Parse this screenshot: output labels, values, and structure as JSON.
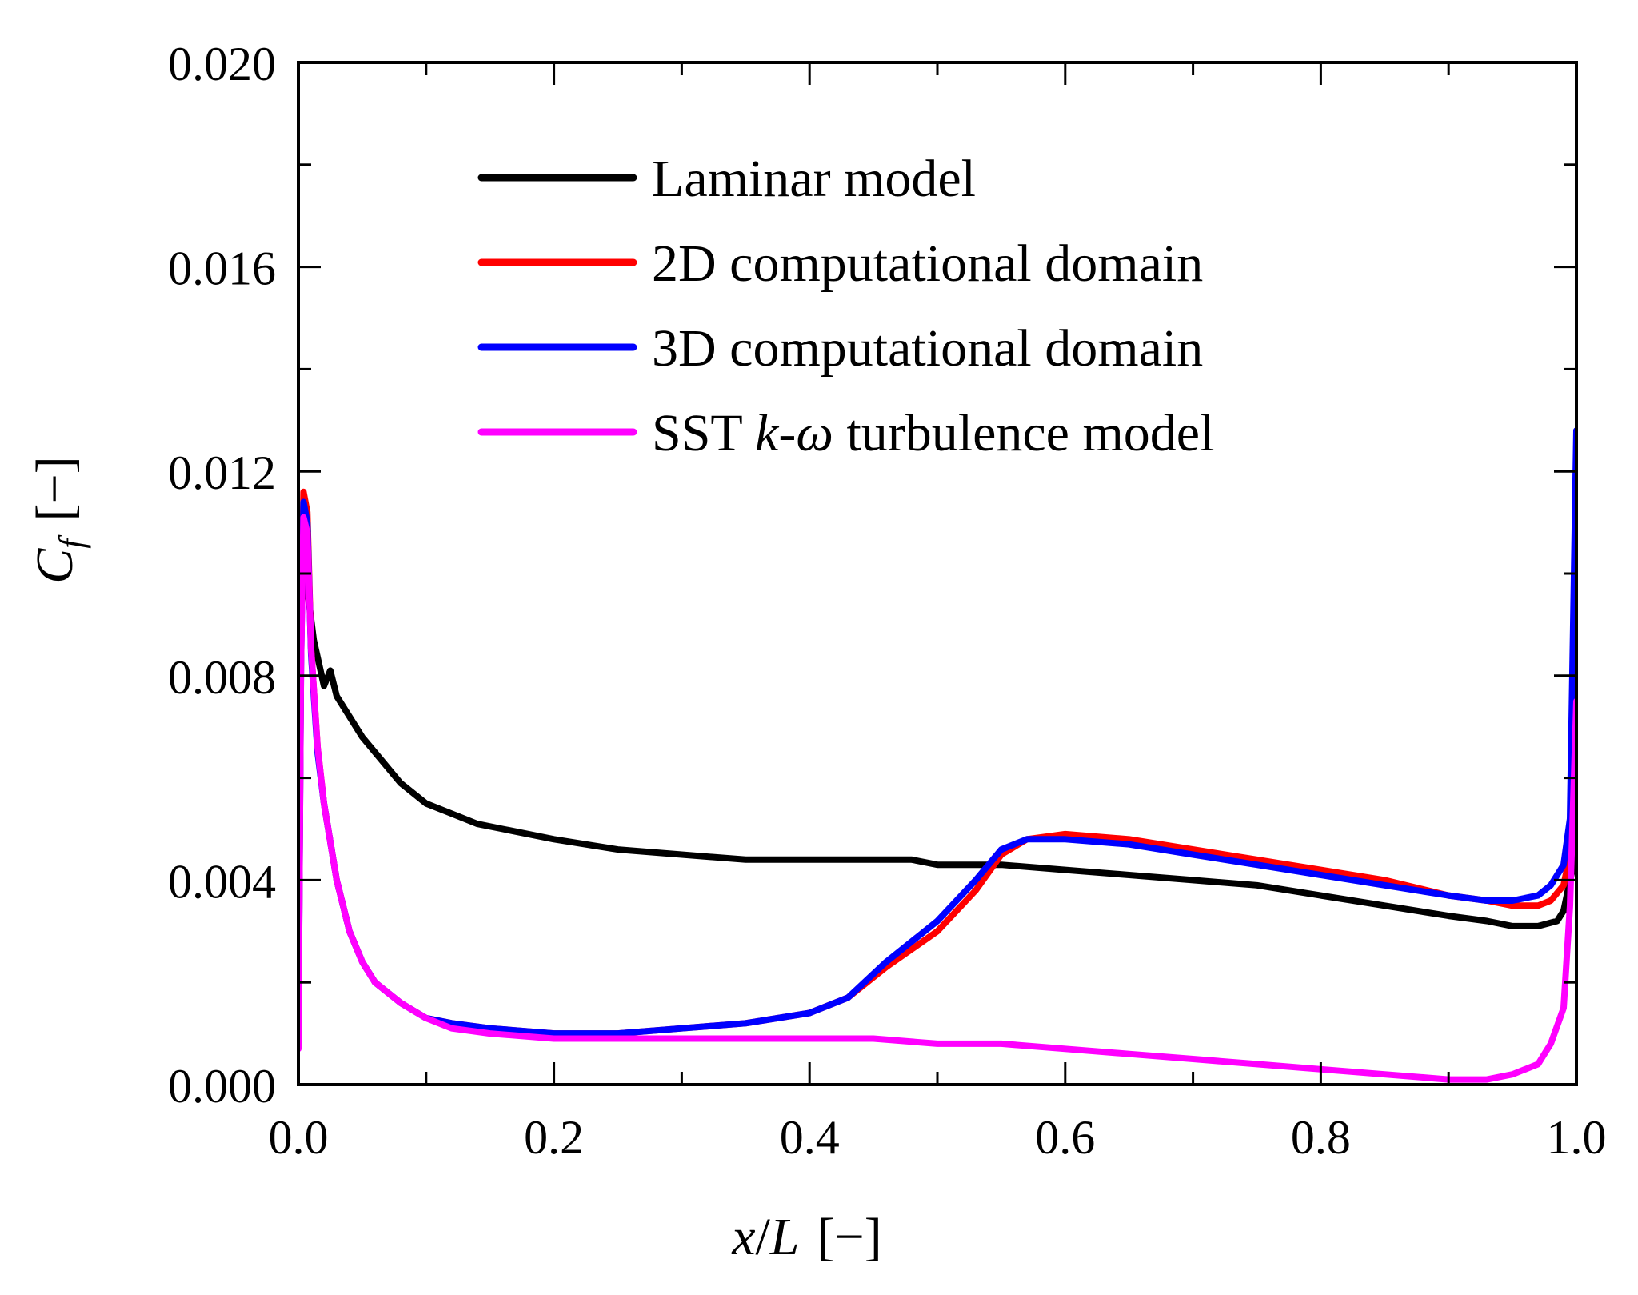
{
  "chart_data": {
    "type": "line",
    "title": "",
    "xlabel": {
      "var": "x",
      "sep": "/",
      "var2": "L",
      "unit": "[−]"
    },
    "ylabel": {
      "var": "C",
      "sub": "f",
      "unit": "[−]"
    },
    "xlim": [
      0,
      1
    ],
    "ylim": [
      0,
      0.02
    ],
    "xticks": [
      0.0,
      0.2,
      0.4,
      0.6,
      0.8,
      1.0
    ],
    "xtick_labels": [
      "0.0",
      "0.2",
      "0.4",
      "0.6",
      "0.8",
      "1.0"
    ],
    "yticks": [
      0.0,
      0.004,
      0.008,
      0.012,
      0.016,
      0.02
    ],
    "ytick_labels": [
      "0.000",
      "0.004",
      "0.008",
      "0.012",
      "0.016",
      "0.020"
    ],
    "grid": false,
    "legend_position": "top-center",
    "series": [
      {
        "name": "Laminar model",
        "legend_parts": [
          {
            "text": "Laminar model",
            "italic": false
          }
        ],
        "color": "#000000",
        "x": [
          0.0,
          0.004,
          0.008,
          0.012,
          0.02,
          0.025,
          0.03,
          0.04,
          0.05,
          0.06,
          0.08,
          0.1,
          0.12,
          0.14,
          0.16,
          0.2,
          0.25,
          0.3,
          0.35,
          0.4,
          0.45,
          0.48,
          0.5,
          0.55,
          0.6,
          0.65,
          0.7,
          0.75,
          0.8,
          0.85,
          0.9,
          0.93,
          0.95,
          0.97,
          0.985,
          0.99,
          0.995,
          1.0
        ],
        "y": [
          0.0075,
          0.0102,
          0.0095,
          0.0087,
          0.0078,
          0.0081,
          0.0076,
          0.0072,
          0.0068,
          0.0065,
          0.0059,
          0.0055,
          0.0053,
          0.0051,
          0.005,
          0.0048,
          0.0046,
          0.0045,
          0.0044,
          0.0044,
          0.0044,
          0.0044,
          0.0043,
          0.0043,
          0.0042,
          0.0041,
          0.004,
          0.0039,
          0.0037,
          0.0035,
          0.0033,
          0.0032,
          0.0031,
          0.0031,
          0.0032,
          0.0034,
          0.004,
          0.0045
        ]
      },
      {
        "name": "2D computational domain",
        "legend_parts": [
          {
            "text": "2D computational domain",
            "italic": false
          }
        ],
        "color": "#ff0000",
        "x": [
          0.0,
          0.002,
          0.004,
          0.007,
          0.01,
          0.015,
          0.02,
          0.03,
          0.04,
          0.05,
          0.06,
          0.08,
          0.1,
          0.12,
          0.15,
          0.2,
          0.25,
          0.3,
          0.35,
          0.4,
          0.43,
          0.46,
          0.5,
          0.53,
          0.55,
          0.57,
          0.6,
          0.65,
          0.7,
          0.75,
          0.8,
          0.85,
          0.9,
          0.93,
          0.95,
          0.97,
          0.98,
          0.99,
          0.995,
          1.0
        ],
        "y": [
          0.0009,
          0.0085,
          0.0116,
          0.0112,
          0.0085,
          0.0066,
          0.0055,
          0.004,
          0.003,
          0.0024,
          0.002,
          0.0016,
          0.0013,
          0.0012,
          0.0011,
          0.001,
          0.001,
          0.0011,
          0.0012,
          0.0014,
          0.0017,
          0.0023,
          0.003,
          0.0038,
          0.0045,
          0.0048,
          0.0049,
          0.0048,
          0.0046,
          0.0044,
          0.0042,
          0.004,
          0.0037,
          0.0036,
          0.0035,
          0.0035,
          0.0036,
          0.0039,
          0.0045,
          0.0055
        ]
      },
      {
        "name": "3D computational domain",
        "legend_parts": [
          {
            "text": "3D computational domain",
            "italic": false
          }
        ],
        "color": "#0000ff",
        "x": [
          0.0,
          0.002,
          0.004,
          0.007,
          0.01,
          0.015,
          0.02,
          0.03,
          0.04,
          0.05,
          0.06,
          0.08,
          0.1,
          0.12,
          0.15,
          0.2,
          0.25,
          0.3,
          0.35,
          0.4,
          0.43,
          0.46,
          0.5,
          0.53,
          0.55,
          0.57,
          0.6,
          0.65,
          0.7,
          0.75,
          0.8,
          0.85,
          0.9,
          0.93,
          0.95,
          0.97,
          0.98,
          0.99,
          0.995,
          1.0
        ],
        "y": [
          0.0008,
          0.0082,
          0.0114,
          0.011,
          0.0084,
          0.0065,
          0.0055,
          0.004,
          0.003,
          0.0024,
          0.002,
          0.0016,
          0.0013,
          0.0012,
          0.0011,
          0.001,
          0.001,
          0.0011,
          0.0012,
          0.0014,
          0.0017,
          0.0024,
          0.0032,
          0.004,
          0.0046,
          0.0048,
          0.0048,
          0.0047,
          0.0045,
          0.0043,
          0.0041,
          0.0039,
          0.0037,
          0.0036,
          0.0036,
          0.0037,
          0.0039,
          0.0043,
          0.0052,
          0.0128
        ]
      },
      {
        "name": "SST k-ω turbulence model",
        "legend_parts": [
          {
            "text": "SST ",
            "italic": false
          },
          {
            "text": "k",
            "italic": true
          },
          {
            "text": "-",
            "italic": false
          },
          {
            "text": "ω",
            "italic": true
          },
          {
            "text": " turbulence model",
            "italic": false
          }
        ],
        "color": "#ff00ff",
        "x": [
          0.0,
          0.002,
          0.004,
          0.007,
          0.01,
          0.015,
          0.02,
          0.03,
          0.04,
          0.05,
          0.06,
          0.08,
          0.1,
          0.12,
          0.15,
          0.2,
          0.25,
          0.3,
          0.35,
          0.4,
          0.45,
          0.5,
          0.55,
          0.6,
          0.65,
          0.7,
          0.75,
          0.8,
          0.85,
          0.9,
          0.93,
          0.95,
          0.97,
          0.98,
          0.99,
          0.995,
          1.0
        ],
        "y": [
          0.0007,
          0.0082,
          0.0111,
          0.0108,
          0.0085,
          0.0066,
          0.0055,
          0.004,
          0.003,
          0.0024,
          0.002,
          0.0016,
          0.0013,
          0.0011,
          0.001,
          0.0009,
          0.0009,
          0.0009,
          0.0009,
          0.0009,
          0.0009,
          0.0008,
          0.0008,
          0.0007,
          0.0006,
          0.0005,
          0.0004,
          0.0003,
          0.0002,
          0.0001,
          0.0001,
          0.0002,
          0.0004,
          0.0008,
          0.0015,
          0.0035,
          0.0075
        ]
      }
    ]
  }
}
